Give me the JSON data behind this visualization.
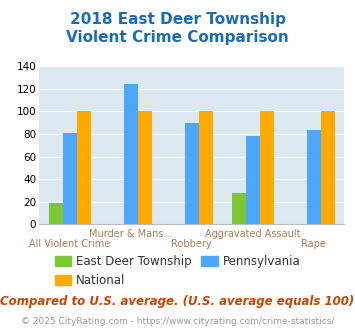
{
  "title": "2018 East Deer Township\nViolent Crime Comparison",
  "cat_labels": [
    "All Violent Crime",
    "Murder & Mans...",
    "Robbery",
    "Aggravated Assault",
    "Rape"
  ],
  "series": {
    "East Deer Township": [
      19,
      0,
      0,
      28,
      0
    ],
    "Pennsylvania": [
      81,
      124,
      90,
      78,
      83
    ],
    "National": [
      100,
      100,
      100,
      100,
      100
    ]
  },
  "colors": {
    "East Deer Township": "#7dc832",
    "Pennsylvania": "#4da6ff",
    "National": "#ffaa00"
  },
  "ylim": [
    0,
    140
  ],
  "yticks": [
    0,
    20,
    40,
    60,
    80,
    100,
    120,
    140
  ],
  "title_color": "#1a6db5",
  "title_fontsize": 11,
  "bg_color": "#dce9f0",
  "xlabel_color": "#b07850",
  "xtick_fontsize": 7,
  "ytick_fontsize": 7.5,
  "legend_fontsize": 8.5,
  "footer_text": "Compared to U.S. average. (U.S. average equals 100)",
  "footer_color": "#cc4400",
  "footer_fontsize": 8.5,
  "credit_text": "© 2025 CityRating.com - https://www.cityrating.com/crime-statistics/",
  "credit_color": "#999999",
  "credit_fontsize": 6.5,
  "bar_width": 0.23
}
